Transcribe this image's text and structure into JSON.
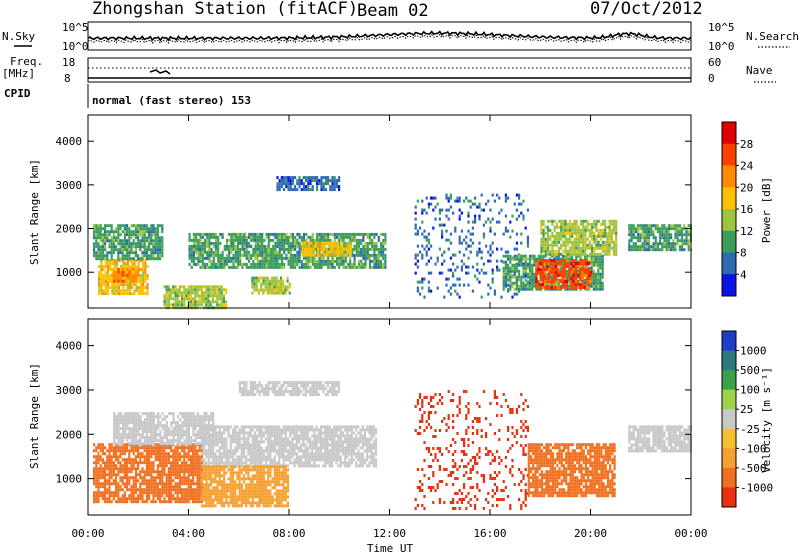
{
  "header": {
    "station": "Zhongshan Station (fitACF)",
    "beam": "Beam 02",
    "date": "07/Oct/2012"
  },
  "strip": {
    "nsky_label": "N.Sky",
    "nsky_top": "10^5",
    "nsky_bottom": "10^0",
    "nsearch_label": "N.Search",
    "nsearch_top": "10^5",
    "nsearch_bottom": "10^0",
    "freq_label_1": "Freq.",
    "freq_label_2": "[MHz]",
    "freq_top": "18",
    "freq_bottom": "8",
    "nave_label": "Nave",
    "nave_top": "60",
    "nave_bottom": "0",
    "cpid_label": "CPID",
    "cpid_text": "normal (fast stereo) 153"
  },
  "power_panel": {
    "ylabel": "Slant Range [km]",
    "colorbar_label": "Power [dB]",
    "colorbar_ticks": [
      "28",
      "24",
      "20",
      "16",
      "12",
      "8",
      "4"
    ],
    "colorbar_colors": [
      "#e00000",
      "#ff4000",
      "#ff8a00",
      "#ffc000",
      "#9ec340",
      "#3a9d5a",
      "#2d6bb0",
      "#0a14e6"
    ]
  },
  "velocity_panel": {
    "ylabel": "Slant Range [km]",
    "colorbar_label": "Velocity [m s⁻¹]",
    "colorbar_ticks": [
      "1000",
      "500",
      "100",
      "25",
      "-25",
      "-100",
      "-500",
      "-1000"
    ],
    "colorbar_colors": [
      "#1e3ec8",
      "#2a7a7e",
      "#3aa04a",
      "#9bd34a",
      "#c8c8c8",
      "#f3c030",
      "#f5a030",
      "#f07020",
      "#e83010"
    ]
  },
  "xaxis": {
    "label": "Time UT",
    "ticks": [
      "00:00",
      "04:00",
      "08:00",
      "12:00",
      "16:00",
      "20:00",
      "00:00"
    ]
  },
  "chart_data": [
    {
      "type": "heatmap",
      "title": "Power",
      "ylabel": "Slant Range [km]",
      "xlabel": "",
      "x_range": [
        "00:00",
        "24:00"
      ],
      "ylim": [
        180,
        4600
      ],
      "y_ticks": [
        1000,
        2000,
        3000,
        4000
      ],
      "colorbar": {
        "label": "Power [dB]",
        "ticks": [
          4,
          8,
          12,
          16,
          20,
          24,
          28
        ]
      },
      "patches": [
        {
          "t0": 0.4,
          "t1": 2.4,
          "r0": 500,
          "r1": 1300,
          "level": 20
        },
        {
          "t0": 0.2,
          "t1": 3.0,
          "r0": 1300,
          "r1": 2100,
          "level": 12
        },
        {
          "t0": 1.0,
          "t1": 2.0,
          "r0": 800,
          "r1": 1100,
          "level": 24
        },
        {
          "t0": 4.0,
          "t1": 11.8,
          "r0": 1100,
          "r1": 1900,
          "level": 12
        },
        {
          "t0": 8.5,
          "t1": 10.5,
          "r0": 1400,
          "r1": 1700,
          "level": 20
        },
        {
          "t0": 3.0,
          "t1": 5.5,
          "r0": 200,
          "r1": 700,
          "level": 16
        },
        {
          "t0": 6.5,
          "t1": 8.0,
          "r0": 500,
          "r1": 900,
          "level": 16
        },
        {
          "t0": 13.0,
          "t1": 17.5,
          "r0": 400,
          "r1": 2800,
          "level": 8
        },
        {
          "t0": 16.5,
          "t1": 20.5,
          "r0": 600,
          "r1": 1400,
          "level": 12
        },
        {
          "t0": 17.8,
          "t1": 20.0,
          "r0": 650,
          "r1": 1300,
          "level": 28
        },
        {
          "t0": 18.0,
          "t1": 21.0,
          "r0": 1400,
          "r1": 2200,
          "level": 16
        },
        {
          "t0": 21.5,
          "t1": 24.0,
          "r0": 1500,
          "r1": 2100,
          "level": 12
        },
        {
          "t0": 7.5,
          "t1": 10.0,
          "r0": 2900,
          "r1": 3200,
          "level": 8
        }
      ]
    },
    {
      "type": "heatmap",
      "title": "Velocity",
      "ylabel": "Slant Range [km]",
      "xlabel": "Time UT",
      "x_range": [
        "00:00",
        "24:00"
      ],
      "ylim": [
        180,
        4600
      ],
      "y_ticks": [
        1000,
        2000,
        3000,
        4000
      ],
      "colorbar": {
        "label": "Velocity [m s⁻¹]",
        "ticks": [
          -1000,
          -500,
          -100,
          -25,
          25,
          100,
          500,
          1000
        ]
      },
      "patches": [
        {
          "t0": 0.2,
          "t1": 4.5,
          "r0": 500,
          "r1": 1800,
          "level": -500
        },
        {
          "t0": 1.0,
          "t1": 5.0,
          "r0": 1800,
          "r1": 2500,
          "level": 0
        },
        {
          "t0": 4.5,
          "t1": 11.5,
          "r0": 1300,
          "r1": 2200,
          "level": 0
        },
        {
          "t0": 4.5,
          "t1": 8.0,
          "r0": 400,
          "r1": 1300,
          "level": -100
        },
        {
          "t0": 13.0,
          "t1": 17.5,
          "r0": 300,
          "r1": 3000,
          "level": -1000
        },
        {
          "t0": 17.5,
          "t1": 21.0,
          "r0": 600,
          "r1": 1800,
          "level": -500
        },
        {
          "t0": 21.5,
          "t1": 24.0,
          "r0": 1600,
          "r1": 2200,
          "level": 0
        },
        {
          "t0": 6.0,
          "t1": 10.0,
          "r0": 2900,
          "r1": 3200,
          "level": 0
        }
      ]
    }
  ]
}
